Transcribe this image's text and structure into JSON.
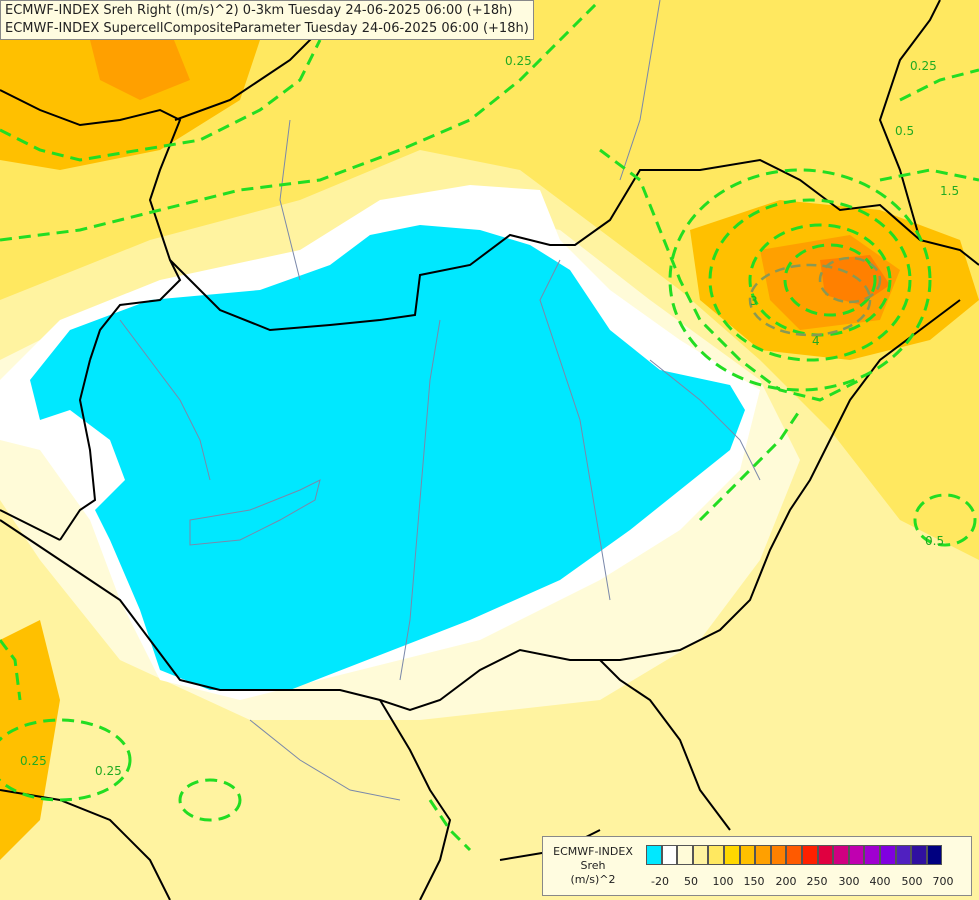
{
  "title": {
    "line1": "ECMWF-INDEX Sreh Right ((m/s)^2) 0-3km Tuesday 24-06-2025 06:00 (+18h)",
    "line2": "ECMWF-INDEX SupercellCompositeParameter Tuesday 24-06-2025 06:00 (+18h)"
  },
  "legend": {
    "model": "ECMWF-INDEX",
    "variable": "Sreh",
    "unit": "(m/s)^2",
    "ticks": [
      "-20",
      "50",
      "100",
      "150",
      "200",
      "250",
      "300",
      "400",
      "500",
      "700"
    ],
    "colors": [
      "#00e8ff",
      "#ffffff",
      "#fffbd8",
      "#fff3a0",
      "#ffe860",
      "#ffd800",
      "#ffc000",
      "#ffa000",
      "#ff8000",
      "#ff5a00",
      "#ff2000",
      "#e00040",
      "#d00080",
      "#c000b0",
      "#a000d0",
      "#8000e0",
      "#5020c0",
      "#3010a0",
      "#000080"
    ]
  },
  "contours": {
    "color": "#22dd22",
    "labels": [
      "0.25",
      "0.5",
      "1.5",
      "3",
      "4",
      "0.25",
      "0.5",
      "0.25",
      "0.25"
    ]
  }
}
